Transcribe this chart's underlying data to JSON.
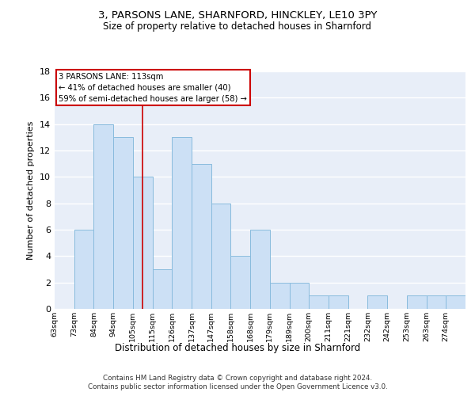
{
  "title_line1": "3, PARSONS LANE, SHARNFORD, HINCKLEY, LE10 3PY",
  "title_line2": "Size of property relative to detached houses in Sharnford",
  "xlabel": "Distribution of detached houses by size in Sharnford",
  "ylabel": "Number of detached properties",
  "bins": [
    "63sqm",
    "73sqm",
    "84sqm",
    "94sqm",
    "105sqm",
    "115sqm",
    "126sqm",
    "137sqm",
    "147sqm",
    "158sqm",
    "168sqm",
    "179sqm",
    "189sqm",
    "200sqm",
    "211sqm",
    "221sqm",
    "232sqm",
    "242sqm",
    "253sqm",
    "263sqm",
    "274sqm"
  ],
  "values": [
    0,
    6,
    14,
    13,
    10,
    3,
    13,
    11,
    8,
    4,
    6,
    2,
    2,
    1,
    1,
    0,
    1,
    0,
    1,
    1,
    1
  ],
  "bar_color": "#cce0f5",
  "bar_edge_color": "#88bbdd",
  "ylim": [
    0,
    18
  ],
  "yticks": [
    0,
    2,
    4,
    6,
    8,
    10,
    12,
    14,
    16,
    18
  ],
  "property_size_idx": 4.5,
  "annotation_line1": "3 PARSONS LANE: 113sqm",
  "annotation_line2": "← 41% of detached houses are smaller (40)",
  "annotation_line3": "59% of semi-detached houses are larger (58) →",
  "annotation_box_color": "#ffffff",
  "annotation_box_edge": "#cc0000",
  "vline_color": "#cc0000",
  "background_color": "#e8eef8",
  "grid_color": "#ffffff",
  "fig_color": "#ffffff",
  "footer_line1": "Contains HM Land Registry data © Crown copyright and database right 2024.",
  "footer_line2": "Contains public sector information licensed under the Open Government Licence v3.0."
}
